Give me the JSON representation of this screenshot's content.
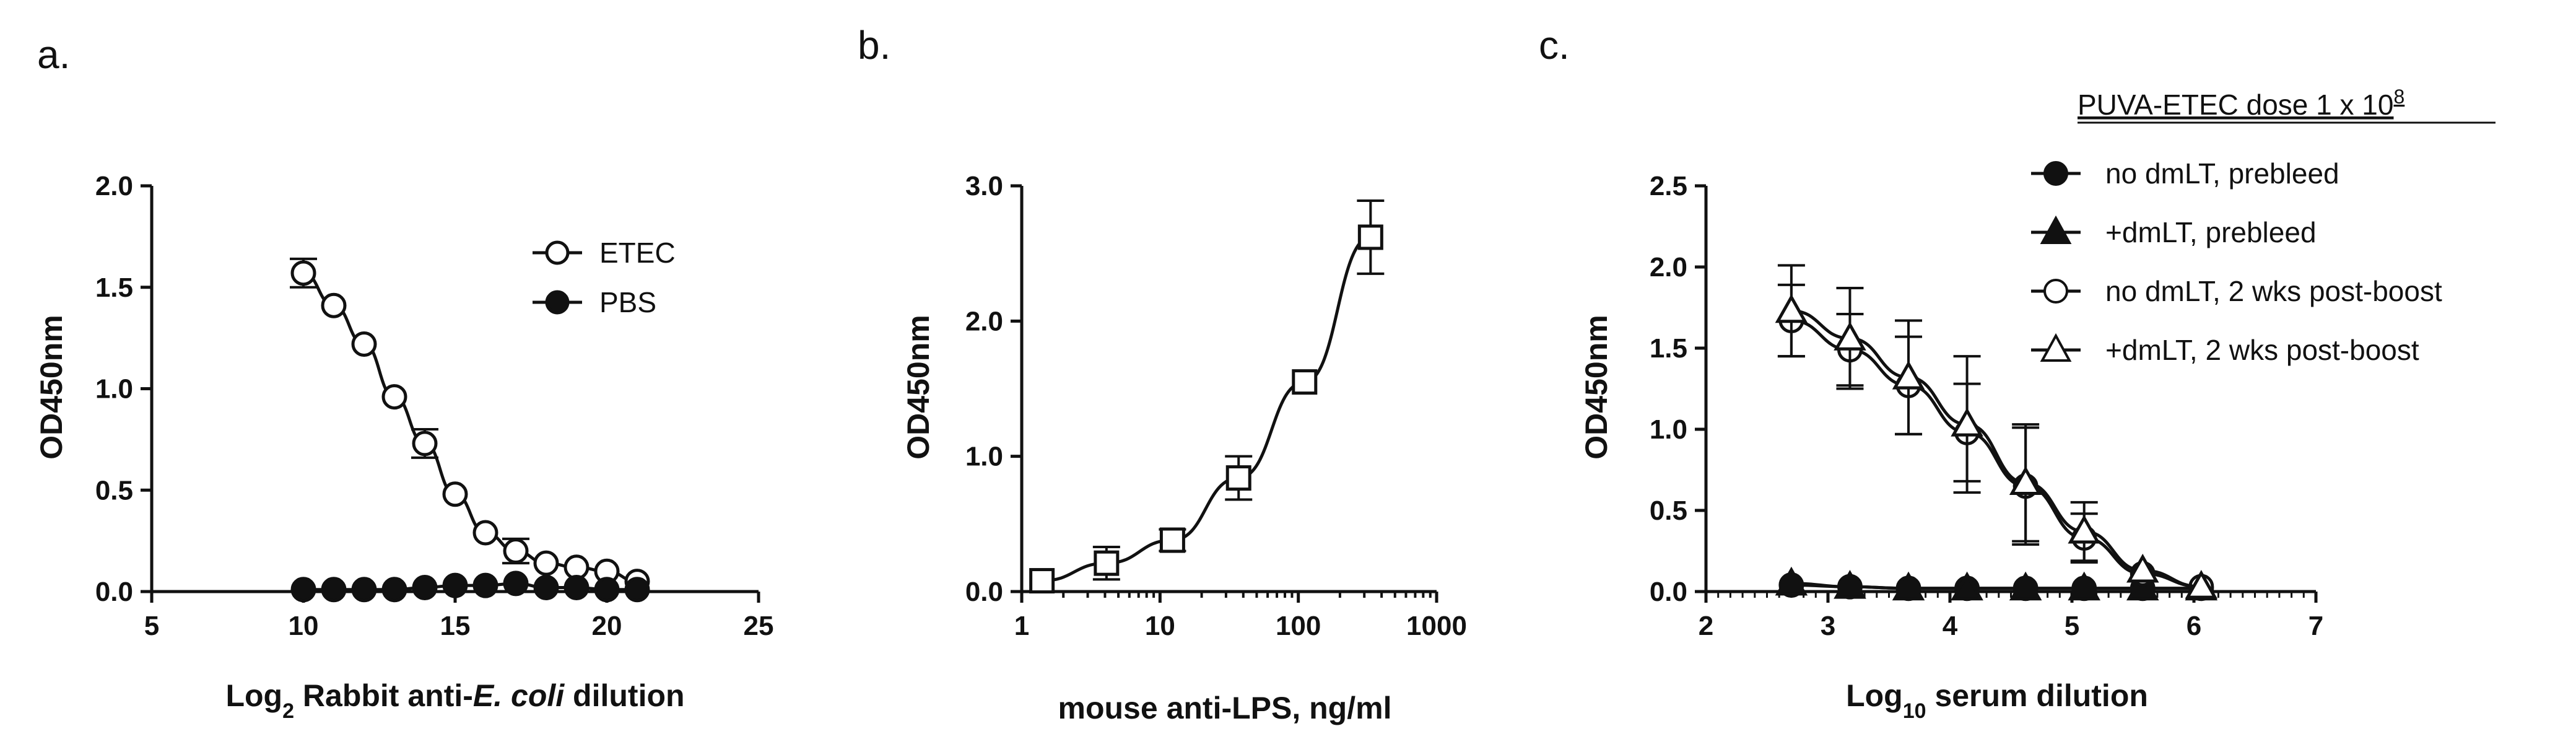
{
  "panels": [
    {
      "letter": "a.",
      "chart_data": {
        "type": "line",
        "xlabel_prefix": "Log",
        "xlabel_sub": "2",
        "xlabel_mid": " Rabbit anti-",
        "xlabel_italic": "E. coli",
        "xlabel_suffix": " dilution",
        "ylabel": "OD450nm",
        "xlim": [
          5,
          25
        ],
        "ylim": [
          0,
          2.0
        ],
        "xticks": [
          5,
          10,
          15,
          20,
          25
        ],
        "xtick_labels": [
          "5",
          "10",
          "15",
          "20",
          "25"
        ],
        "yticks": [
          0,
          0.5,
          1.0,
          1.5,
          2.0
        ],
        "ytick_labels": [
          "0.0",
          "0.5",
          "1.0",
          "1.5",
          "2.0"
        ],
        "x_scale": "linear",
        "grid": false,
        "legend_position": "top-right",
        "series": [
          {
            "name": "ETEC",
            "marker": "circle-open",
            "x": [
              10,
              11,
              12,
              13,
              14,
              15,
              16,
              17,
              18,
              19,
              20,
              21
            ],
            "y": [
              1.57,
              1.41,
              1.22,
              0.96,
              0.73,
              0.48,
              0.29,
              0.2,
              0.14,
              0.12,
              0.1,
              0.05
            ],
            "err": [
              0.07,
              0,
              0,
              0,
              0.07,
              0,
              0,
              0.06,
              0,
              0,
              0,
              0
            ]
          },
          {
            "name": "PBS",
            "marker": "circle-filled",
            "x": [
              10,
              11,
              12,
              13,
              14,
              15,
              16,
              17,
              18,
              19,
              20,
              21
            ],
            "y": [
              0.01,
              0.01,
              0.01,
              0.01,
              0.02,
              0.03,
              0.03,
              0.04,
              0.02,
              0.02,
              0.01,
              0.01
            ],
            "err": [
              0,
              0,
              0,
              0,
              0,
              0,
              0,
              0,
              0,
              0,
              0,
              0
            ]
          }
        ]
      }
    },
    {
      "letter": "b.",
      "chart_data": {
        "type": "line",
        "xlabel": "mouse anti-LPS, ng/ml",
        "ylabel": "OD450nm",
        "xlim": [
          1,
          1000
        ],
        "ylim": [
          0,
          3.0
        ],
        "xticks": [
          1,
          10,
          100,
          1000
        ],
        "xtick_labels": [
          "1",
          "10",
          "100",
          "1000"
        ],
        "yticks": [
          0,
          1.0,
          2.0,
          3.0
        ],
        "ytick_labels": [
          "0.0",
          "1.0",
          "2.0",
          "3.0"
        ],
        "x_scale": "log",
        "grid": false,
        "series": [
          {
            "marker": "square-open",
            "x": [
              1.4,
              4.1,
              12.3,
              37,
              111,
              333
            ],
            "y": [
              0.08,
              0.21,
              0.38,
              0.84,
              1.55,
              2.62
            ],
            "err": [
              0,
              0.12,
              0.08,
              0.16,
              0,
              0.27
            ]
          }
        ]
      }
    },
    {
      "letter": "c.",
      "chart_data": {
        "type": "line",
        "xlabel_prefix": "Log",
        "xlabel_sub": "10",
        "xlabel_suffix": " serum dilution",
        "ylabel": "OD450nm",
        "xlim": [
          2,
          7
        ],
        "ylim": [
          0,
          2.5
        ],
        "xticks": [
          2,
          3,
          4,
          5,
          6,
          7
        ],
        "xtick_labels": [
          "2",
          "3",
          "4",
          "5",
          "6",
          "7"
        ],
        "yticks": [
          0,
          0.5,
          1.0,
          1.5,
          2.0,
          2.5
        ],
        "ytick_labels": [
          "0.0",
          "0.5",
          "1.0",
          "1.5",
          "2.0",
          "2.5"
        ],
        "x_scale": "linear",
        "grid": false,
        "legend_title_main": "PUVA-ETEC dose 1 x 10",
        "legend_title_sup": "8",
        "legend_position": "top-right",
        "series": [
          {
            "name": "no dmLT, prebleed",
            "marker": "circle-filled",
            "x": [
              2.7,
              3.18,
              3.66,
              4.14,
              4.62,
              5.1,
              5.58,
              6.06
            ],
            "y": [
              0.04,
              0.03,
              0.02,
              0.02,
              0.02,
              0.02,
              0.02,
              0.02
            ],
            "err": [
              0,
              0,
              0,
              0,
              0,
              0,
              0,
              0
            ]
          },
          {
            "name": "+dmLT, prebleed",
            "marker": "triangle-filled",
            "x": [
              2.7,
              3.18,
              3.66,
              4.14,
              4.62,
              5.1,
              5.58,
              6.06
            ],
            "y": [
              0.05,
              0.03,
              0.02,
              0.02,
              0.02,
              0.02,
              0.02,
              0.02
            ],
            "err": [
              0,
              0,
              0,
              0,
              0,
              0,
              0,
              0
            ]
          },
          {
            "name": "no dmLT, 2 wks post-boost",
            "marker": "circle-open",
            "x": [
              2.7,
              3.18,
              3.66,
              4.14,
              4.62,
              5.1,
              5.58,
              6.06
            ],
            "y": [
              1.67,
              1.49,
              1.27,
              0.98,
              0.65,
              0.33,
              0.11,
              0.03
            ],
            "err": [
              0.22,
              0.22,
              0.3,
              0.3,
              0.36,
              0.15,
              0,
              0
            ]
          },
          {
            "name": "+dmLT, 2 wks post-boost",
            "marker": "triangle-open",
            "x": [
              2.7,
              3.18,
              3.66,
              4.14,
              4.62,
              5.1,
              5.58,
              6.06
            ],
            "y": [
              1.73,
              1.56,
              1.32,
              1.03,
              0.67,
              0.37,
              0.13,
              0.03
            ],
            "err": [
              0.28,
              0.31,
              0.35,
              0.42,
              0.36,
              0.18,
              0,
              0
            ]
          }
        ]
      }
    }
  ]
}
